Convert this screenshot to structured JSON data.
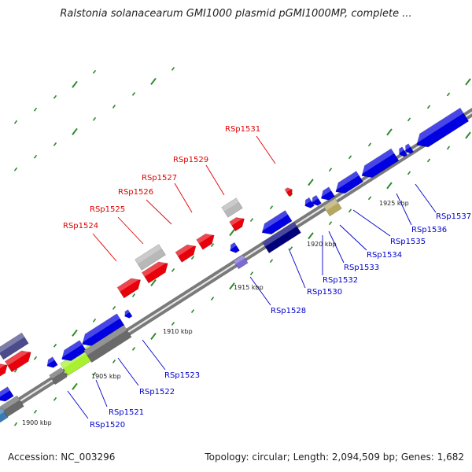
{
  "title": "Ralstonia solanacearum GMI1000 plasmid pGMI1000MP, complete ...",
  "footer": {
    "accession": "Accession: NC_003296",
    "topology": "Topology: circular; Length: 2,094,509 bp; Genes: 1,682"
  },
  "colors": {
    "label_forward": "#e00000",
    "label_reverse": "#0000cc",
    "backbone": "#8c8c8c",
    "tick": "#2a8a2a"
  },
  "scale_labels": [
    "1900 kbp",
    "1905 kbp",
    "1910 kbp",
    "1915 kbp",
    "1920 kbp",
    "1925 kbp"
  ],
  "gene_labels": [
    {
      "id": "RSp1524",
      "strand": "forward"
    },
    {
      "id": "RSp1525",
      "strand": "forward"
    },
    {
      "id": "RSp1526",
      "strand": "forward"
    },
    {
      "id": "RSp1527",
      "strand": "forward"
    },
    {
      "id": "RSp1529",
      "strand": "forward"
    },
    {
      "id": "RSp1531",
      "strand": "forward"
    },
    {
      "id": "RSp1520",
      "strand": "reverse"
    },
    {
      "id": "RSp1521",
      "strand": "reverse"
    },
    {
      "id": "RSp1522",
      "strand": "reverse"
    },
    {
      "id": "RSp1523",
      "strand": "reverse"
    },
    {
      "id": "RSp1528",
      "strand": "reverse"
    },
    {
      "id": "RSp1530",
      "strand": "reverse"
    },
    {
      "id": "RSp1532",
      "strand": "reverse"
    },
    {
      "id": "RSp1533",
      "strand": "reverse"
    },
    {
      "id": "RSp1534",
      "strand": "reverse"
    },
    {
      "id": "RSp1535",
      "strand": "reverse"
    },
    {
      "id": "RSp1536",
      "strand": "reverse"
    },
    {
      "id": "RSp1537",
      "strand": "reverse"
    }
  ]
}
